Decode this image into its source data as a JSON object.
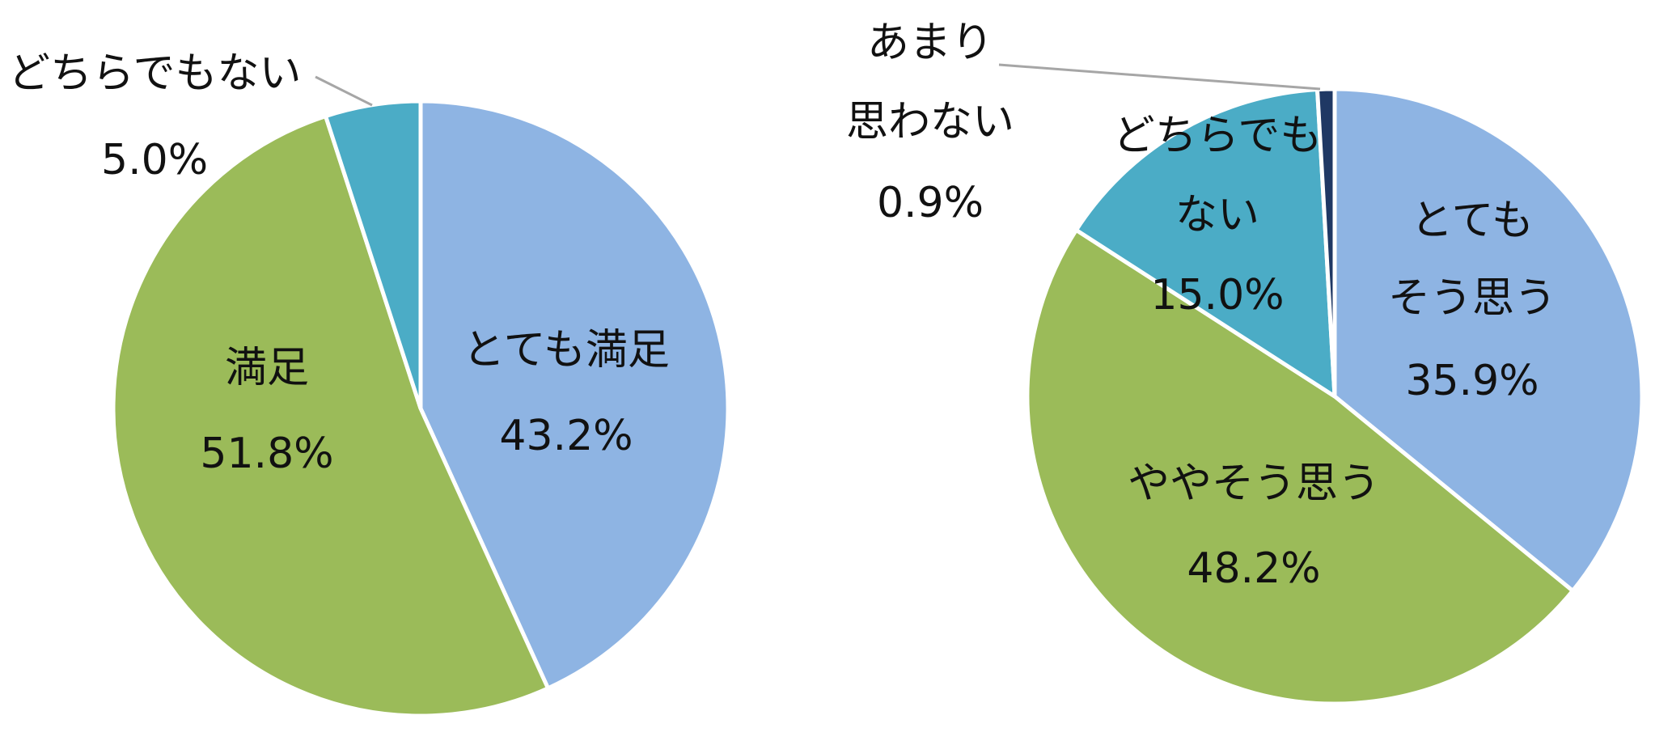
{
  "chart_data": [
    {
      "type": "pie",
      "slices": [
        {
          "label": "とても満足",
          "value": 43.2,
          "value_label": "43.2%",
          "color": "#8EB4E3"
        },
        {
          "label": "満足",
          "value": 51.8,
          "value_label": "51.8%",
          "color": "#9BBB59"
        },
        {
          "label": "どちらでもない",
          "value": 5.0,
          "value_label": "5.0%",
          "color": "#4BACC6"
        }
      ]
    },
    {
      "type": "pie",
      "slices": [
        {
          "label": "とても",
          "label2": "そう思う",
          "value": 35.9,
          "value_label": "35.9%",
          "color": "#8EB4E3"
        },
        {
          "label": "ややそう思う",
          "value": 48.2,
          "value_label": "48.2%",
          "color": "#9BBB59"
        },
        {
          "label": "どちらでも",
          "label2": "ない",
          "value": 15.0,
          "value_label": "15.0%",
          "color": "#4BACC6"
        },
        {
          "label": "あまり",
          "label2": "思わない",
          "value": 0.9,
          "value_label": "0.9%",
          "color": "#1F3864"
        }
      ]
    }
  ]
}
